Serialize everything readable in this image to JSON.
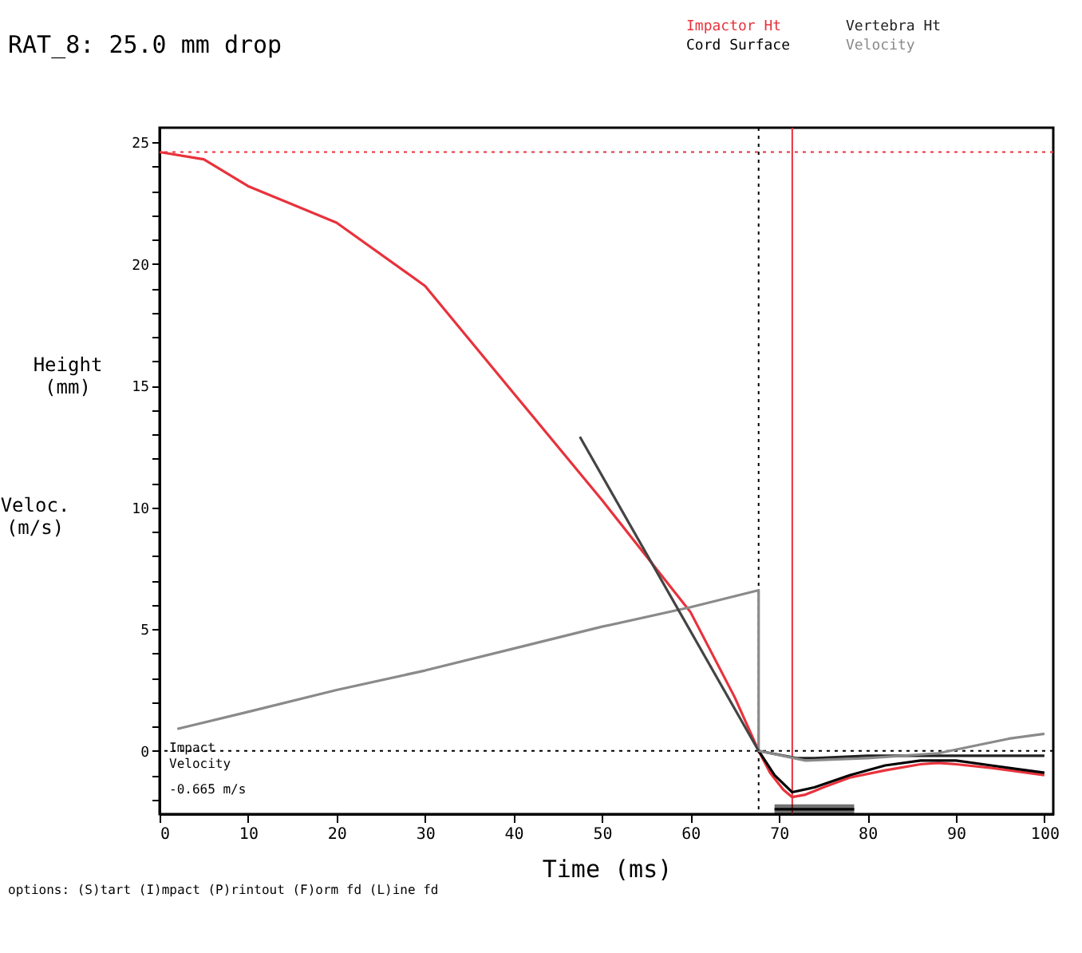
{
  "chart_data": {
    "type": "line",
    "title": "RAT_8:   25.0 mm drop",
    "xlabel": "Time (ms)",
    "ylabel": "Height (mm)",
    "xlim": [
      0,
      101
    ],
    "ylim": [
      -2.6,
      25.6
    ],
    "xticks": [
      0,
      10,
      20,
      30,
      40,
      50,
      60,
      70,
      80,
      90,
      100
    ],
    "yticks": [
      {
        "value": -2,
        "label": null
      },
      {
        "value": -1,
        "label": null
      },
      0,
      {
        "value": 1,
        "label": null
      },
      {
        "value": 2,
        "label": null
      },
      {
        "value": 3,
        "label": null
      },
      {
        "value": 4,
        "label": null
      },
      5,
      {
        "value": 6,
        "label": null
      },
      {
        "value": 7,
        "label": null
      },
      {
        "value": 8,
        "label": null
      },
      {
        "value": 9,
        "label": null
      },
      10,
      {
        "value": 11,
        "label": null
      },
      {
        "value": 12,
        "label": null
      },
      {
        "value": 13,
        "label": null
      },
      {
        "value": 14,
        "label": null
      },
      15,
      {
        "value": 16,
        "label": null
      },
      {
        "value": 17,
        "label": null
      },
      {
        "value": 18,
        "label": null
      },
      {
        "value": 19,
        "label": null
      },
      20,
      {
        "value": 21,
        "label": null
      },
      {
        "value": 22,
        "label": null
      },
      {
        "value": 23,
        "label": null
      },
      {
        "value": 24,
        "label": null
      },
      25
    ],
    "grid": false,
    "legend": "top right",
    "marker": "none",
    "series": [
      {
        "name": "Impactor Ht",
        "color": "#e8323c",
        "x": [
          0,
          5,
          10,
          20,
          30,
          40,
          50,
          60,
          65,
          67.7,
          69,
          70.5,
          71.5,
          73,
          75,
          78,
          82,
          86,
          88,
          90,
          94,
          98,
          100
        ],
        "values": [
          24.6,
          24.3,
          23.2,
          21.7,
          19.1,
          14.7,
          10.3,
          5.7,
          2.2,
          0,
          -0.9,
          -1.6,
          -1.9,
          -1.8,
          -1.5,
          -1.1,
          -0.8,
          -0.55,
          -0.5,
          -0.55,
          -0.7,
          -0.9,
          -1.0
        ]
      },
      {
        "name": "Vertebra Ht",
        "color": "#222222",
        "x": [
          67.7,
          72,
          74,
          80,
          100
        ],
        "values": [
          0,
          -0.3,
          -0.3,
          -0.2,
          -0.2
        ]
      },
      {
        "name": "Cord Surface",
        "color": "#000000",
        "x": [
          67.7,
          69.5,
          71.5,
          74,
          78,
          82,
          86,
          90,
          94,
          98,
          100
        ],
        "values": [
          0,
          -1.0,
          -1.7,
          -1.5,
          -1.0,
          -0.6,
          -0.4,
          -0.4,
          -0.6,
          -0.8,
          -0.9
        ]
      },
      {
        "name": "Velocity",
        "color": "#8a8a8a",
        "x": [
          2,
          10,
          20,
          30,
          40,
          50,
          60,
          67.7,
          67.7,
          73,
          80,
          88,
          96,
          100
        ],
        "values": [
          0.9,
          1.6,
          2.5,
          3.3,
          4.2,
          5.1,
          5.9,
          6.6,
          0,
          -0.4,
          -0.3,
          -0.1,
          0.5,
          0.7
        ]
      },
      {
        "color": "#444444",
        "x": [
          47.5,
          67.7
        ],
        "values": [
          12.9,
          0
        ]
      },
      {
        "color": "#000000",
        "x": [
          69.5,
          78.5
        ],
        "values": [
          -2.4,
          -2.4
        ],
        "lower": [
          -2.6,
          -2.6
        ],
        "upper": [
          -2.2,
          -2.2
        ]
      }
    ],
    "ref_lines": [
      {
        "axis": "x",
        "value": 67.7,
        "color": "#000000",
        "line_style": "dotted"
      },
      {
        "axis": "x",
        "value": 71.5,
        "color": "#e8323c",
        "line_style": "solid"
      },
      {
        "axis": "y",
        "value": 0,
        "color": "#000000",
        "line_style": "dotted"
      },
      {
        "axis": "y",
        "value": 24.6,
        "color": "#e8323c",
        "line_style": "dotted"
      }
    ],
    "annotations": [
      "Veloc. (m/s)",
      "Impact Velocity",
      "-0.665 m/s",
      "options: (S)tart  (I)mpact  (P)rintout  (F)orm fd  (L)ine fd"
    ]
  }
}
